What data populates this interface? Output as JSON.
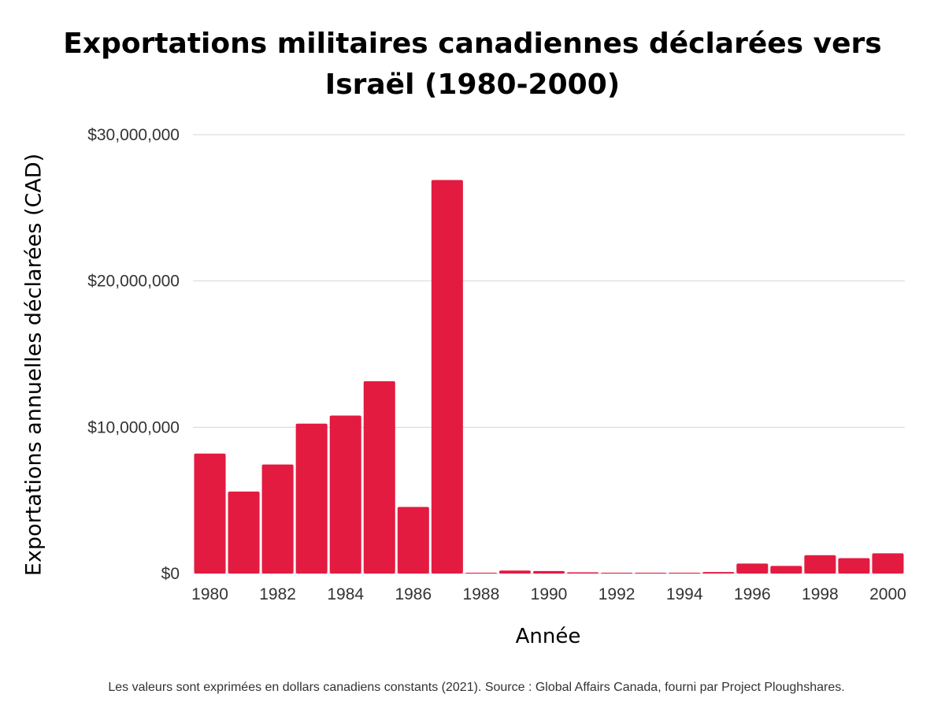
{
  "chart_data": {
    "type": "bar",
    "title": "Exportations militaires canadiennes déclarées vers Israël (1980-2000)",
    "xlabel": "Année",
    "ylabel": "Exportations annuelles déclarées (CAD)",
    "categories": [
      "1980",
      "1981",
      "1982",
      "1983",
      "1984",
      "1985",
      "1986",
      "1987",
      "1988",
      "1989",
      "1990",
      "1991",
      "1992",
      "1993",
      "1994",
      "1995",
      "1996",
      "1997",
      "1998",
      "1999",
      "2000"
    ],
    "series": [
      {
        "values": [
          8200000,
          5600000,
          7450000,
          10250000,
          10800000,
          13150000,
          4550000,
          26900000,
          50000,
          200000,
          170000,
          80000,
          10000,
          10000,
          10000,
          100000,
          680000,
          520000,
          1250000,
          1050000,
          1380000
        ]
      }
    ],
    "x_tick_labels": [
      "1980",
      "1982",
      "1984",
      "1986",
      "1988",
      "1990",
      "1992",
      "1994",
      "1996",
      "1998",
      "2000"
    ],
    "y_ticks": [
      0,
      10000000,
      20000000,
      30000000
    ],
    "y_tick_labels": [
      "$0",
      "$10,000,000",
      "$20,000,000",
      "$30,000,000"
    ],
    "ylim": [
      0,
      30000000
    ],
    "grid": true,
    "legend": "none",
    "colors": {
      "bar": "#e31b40",
      "grid": "#d6d6d6"
    },
    "footnote": "Les valeurs sont exprimées en dollars canadiens constants (2021). Source : Global Affairs Canada, fourni par Project Ploughshares."
  }
}
